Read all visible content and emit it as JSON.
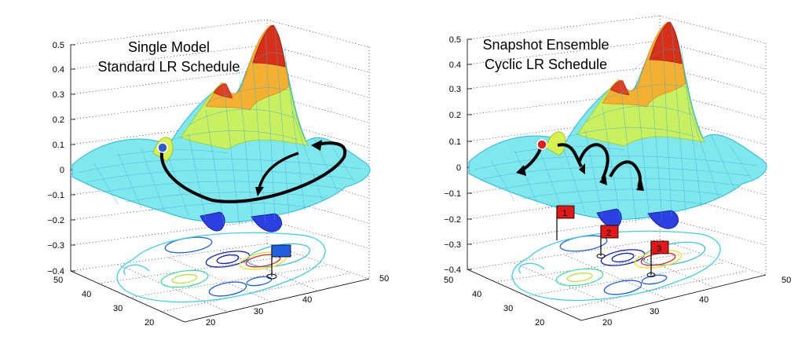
{
  "panels": [
    {
      "title_line1": "Single Model",
      "title_line2": "Standard LR Schedule",
      "marker_color": "#2a5bd7",
      "flags": [
        {
          "label": "",
          "color": "#1f5fe0"
        }
      ]
    },
    {
      "title_line1": "Snapshot Ensemble",
      "title_line2": "Cyclic LR Schedule",
      "marker_color": "#e02020",
      "flags": [
        {
          "label": "1",
          "color": "#e01818"
        },
        {
          "label": "2",
          "color": "#e01818"
        },
        {
          "label": "3",
          "color": "#e01818"
        }
      ]
    }
  ],
  "z_ticks": [
    "0.5",
    "0.4",
    "0.3",
    "0.2",
    "0.1",
    "0",
    "−0.1",
    "−0.2",
    "−0.3",
    "−0.4"
  ],
  "x_ticks": [
    "50",
    "40",
    "30",
    "20"
  ],
  "y_ticks": [
    "20",
    "30",
    "40",
    "50"
  ],
  "colors": {
    "surface_low": "#1010c8",
    "surface_mid": "#40e0e0",
    "surface_high": "#d01010",
    "path": "#000000"
  }
}
